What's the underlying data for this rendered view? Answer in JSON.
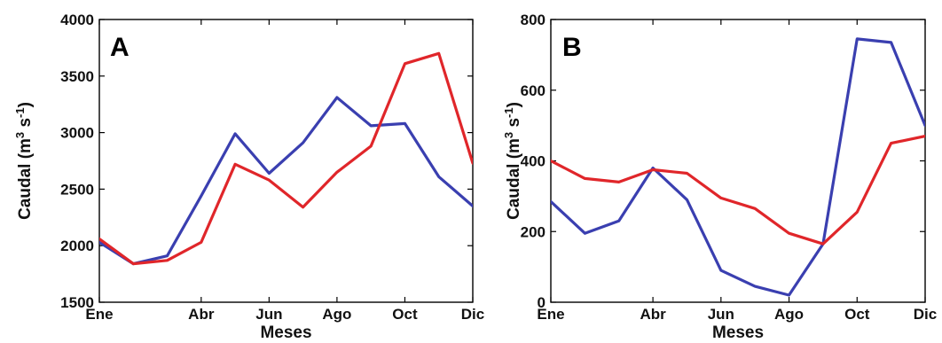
{
  "chart_data": [
    {
      "type": "line",
      "panel_label": "A",
      "ylabel": "Caudal (m",
      "ylabel_sup1": "3",
      "ylabel_mid": " s",
      "ylabel_sup2": "-1",
      "ylabel_end": ")",
      "xlabel": "Meses",
      "ylim": [
        1500,
        4000
      ],
      "yticks": [
        1500,
        2000,
        2500,
        3000,
        3500,
        4000
      ],
      "xticks": [
        {
          "label": "Ene",
          "month": 1
        },
        {
          "label": "Abr",
          "month": 4
        },
        {
          "label": "Jun",
          "month": 6
        },
        {
          "label": "Ago",
          "month": 8
        },
        {
          "label": "Oct",
          "month": 10
        },
        {
          "label": "Dic",
          "month": 12
        }
      ],
      "x": [
        1,
        2,
        3,
        4,
        5,
        6,
        7,
        8,
        9,
        10,
        11,
        12
      ],
      "series": [
        {
          "color": "#3a3fb0",
          "values": [
            2030,
            1840,
            1910,
            2440,
            2990,
            2640,
            2910,
            3310,
            3060,
            3080,
            2610,
            2350
          ]
        },
        {
          "color": "#e0262a",
          "values": [
            2060,
            1840,
            1870,
            2030,
            2720,
            2580,
            2340,
            2650,
            2880,
            3610,
            3700,
            2730
          ]
        }
      ]
    },
    {
      "type": "line",
      "panel_label": "B",
      "ylabel": "Caudal (m",
      "ylabel_sup1": "3",
      "ylabel_mid": " s",
      "ylabel_sup2": "-1",
      "ylabel_end": ")",
      "xlabel": "Meses",
      "ylim": [
        0,
        800
      ],
      "yticks": [
        0,
        200,
        400,
        600,
        800
      ],
      "xticks": [
        {
          "label": "Ene",
          "month": 1
        },
        {
          "label": "Abr",
          "month": 4
        },
        {
          "label": "Jun",
          "month": 6
        },
        {
          "label": "Ago",
          "month": 8
        },
        {
          "label": "Oct",
          "month": 10
        },
        {
          "label": "Dic",
          "month": 12
        }
      ],
      "x": [
        1,
        2,
        3,
        4,
        5,
        6,
        7,
        8,
        9,
        10,
        11,
        12
      ],
      "series": [
        {
          "color": "#3a3fb0",
          "values": [
            285,
            195,
            230,
            380,
            290,
            90,
            45,
            20,
            165,
            745,
            735,
            500
          ]
        },
        {
          "color": "#e0262a",
          "values": [
            400,
            350,
            340,
            375,
            365,
            295,
            265,
            195,
            165,
            255,
            450,
            470
          ]
        }
      ]
    }
  ]
}
